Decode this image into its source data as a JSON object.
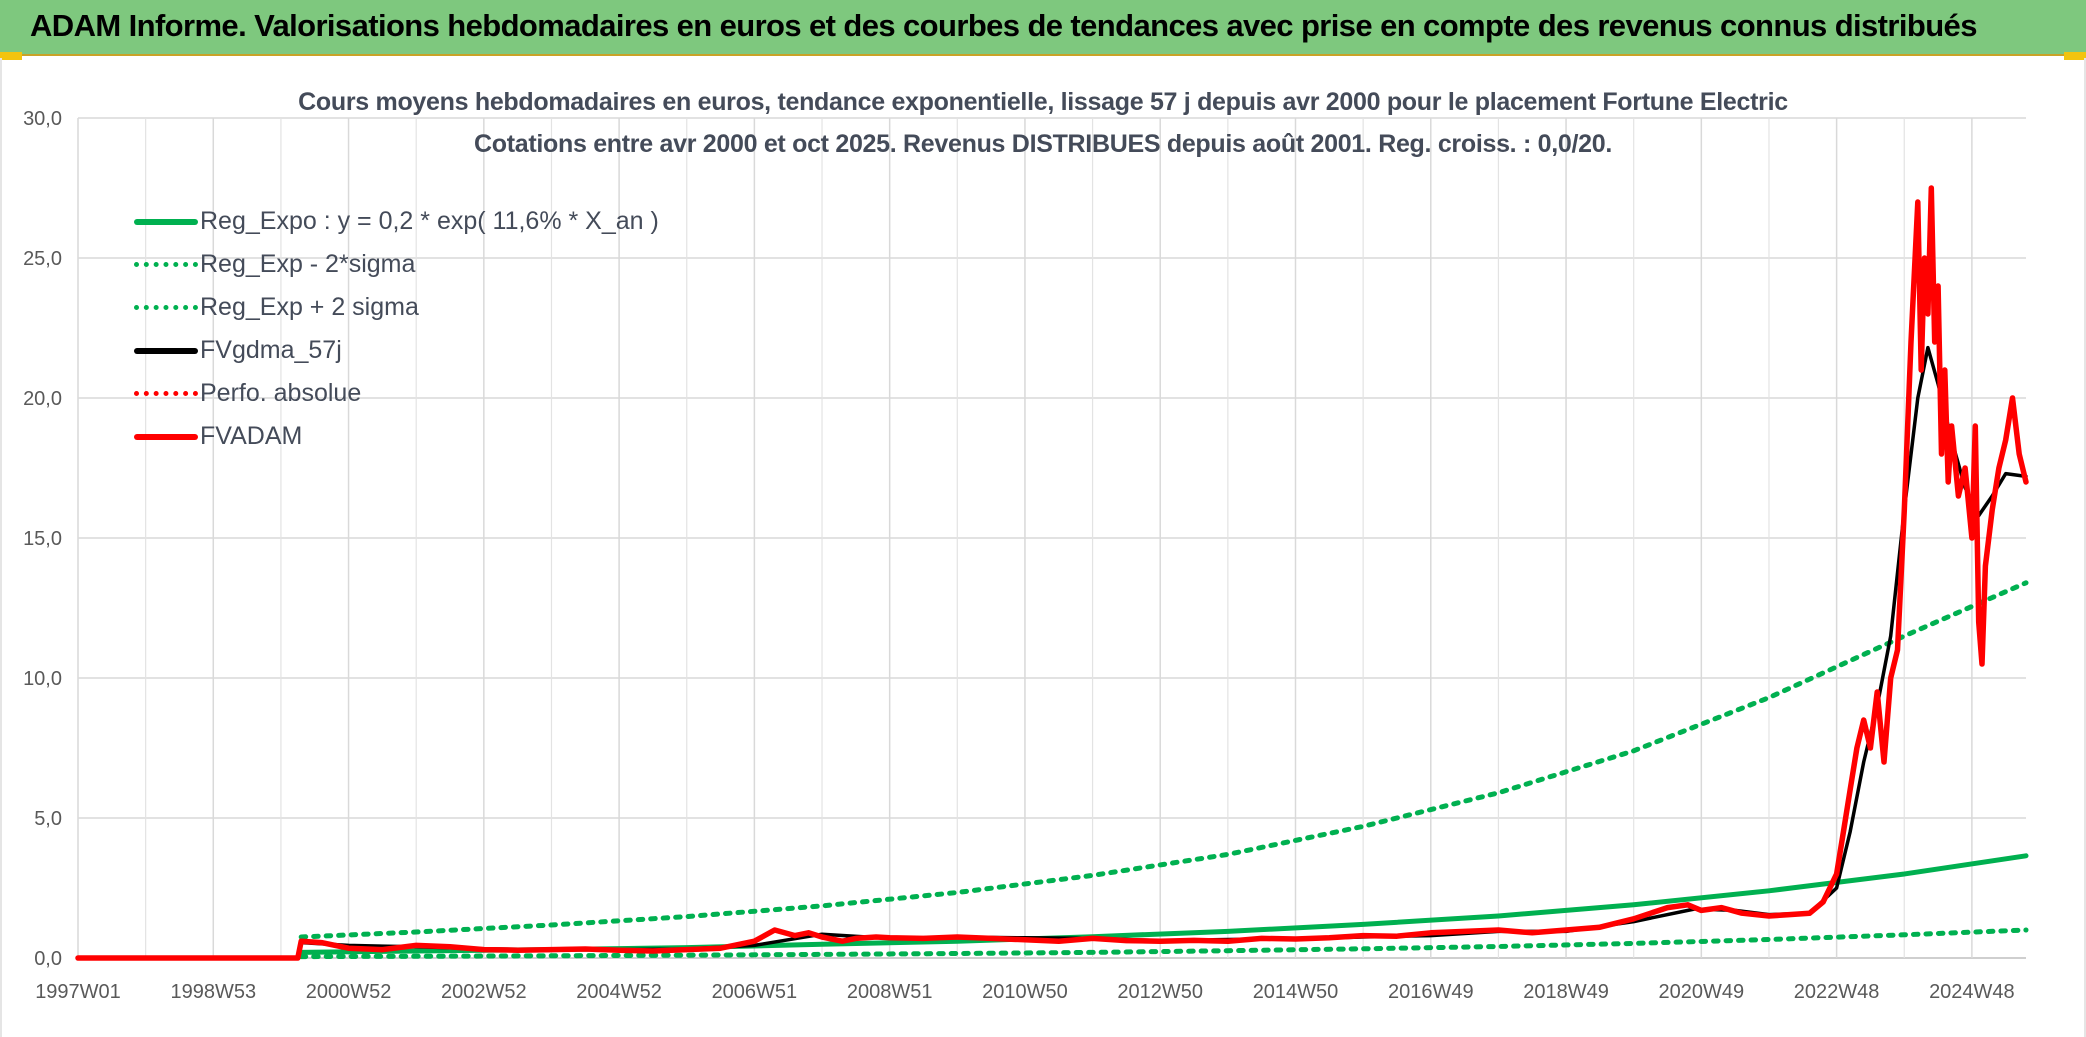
{
  "banner": {
    "title": "ADAM Informe. Valorisations hebdomadaires en euros et des courbes de tendances avec prise en compte des revenus connus distribués"
  },
  "chart_data": {
    "type": "line",
    "title": "Cours moyens hebdomadaires en euros, tendance exponentielle, lissage 57 j depuis avr 2000 pour le placement Fortune Electric",
    "subtitle": "Cotations entre avr 2000 et oct 2025. Revenus DISTRIBUES depuis août 2001. Reg. croiss. : 0,0/20.",
    "xlabel": "",
    "ylabel": "",
    "x_tick_labels": [
      "1997W01",
      "1998W53",
      "2000W52",
      "2002W52",
      "2004W52",
      "2006W51",
      "2008W51",
      "2010W50",
      "2012W50",
      "2014W50",
      "2016W49",
      "2018W49",
      "2020W49",
      "2022W48",
      "2024W48"
    ],
    "x_tick_years": [
      1997.0,
      1999.0,
      2001.0,
      2003.0,
      2005.0,
      2007.0,
      2009.0,
      2011.0,
      2013.0,
      2015.0,
      2017.0,
      2019.0,
      2021.0,
      2023.0,
      2025.0
    ],
    "x_range": [
      1997.0,
      2025.8
    ],
    "ylim": [
      0,
      30
    ],
    "y_ticks": [
      "0,0",
      "5,0",
      "10,0",
      "15,0",
      "20,0",
      "25,0",
      "30,0"
    ],
    "grid": true,
    "legend_position": "top-left",
    "series": [
      {
        "name": "Reg_Expo : y = 0,2 * exp( 11,6% *  X_an )",
        "color": "#00b050",
        "style": "solid",
        "x": [
          2000.3,
          2002,
          2004,
          2006,
          2008,
          2010,
          2012,
          2014,
          2016,
          2018,
          2020,
          2022,
          2024,
          2025.8
        ],
        "y": [
          0.2,
          0.25,
          0.3,
          0.37,
          0.49,
          0.6,
          0.76,
          0.95,
          1.2,
          1.5,
          1.9,
          2.4,
          3.0,
          3.65
        ]
      },
      {
        "name": "Reg_Exp - 2*sigma",
        "color": "#00b050",
        "style": "dotted",
        "x": [
          2000.3,
          2002,
          2004,
          2006,
          2008,
          2010,
          2012,
          2014,
          2016,
          2018,
          2020,
          2022,
          2024,
          2025.8
        ],
        "y": [
          0.05,
          0.06,
          0.08,
          0.1,
          0.13,
          0.16,
          0.2,
          0.26,
          0.33,
          0.41,
          0.52,
          0.66,
          0.83,
          1.0
        ]
      },
      {
        "name": "Reg_Exp + 2 sigma",
        "color": "#00b050",
        "style": "dotted",
        "x": [
          2000.3,
          2002,
          2004,
          2006,
          2008,
          2010,
          2012,
          2014,
          2016,
          2018,
          2020,
          2022,
          2024,
          2025.8
        ],
        "y": [
          0.75,
          0.93,
          1.18,
          1.48,
          1.86,
          2.34,
          2.95,
          3.7,
          4.7,
          5.9,
          7.4,
          9.3,
          11.5,
          13.4
        ]
      },
      {
        "name": "FVgdma_57j",
        "color": "#000000",
        "style": "solid",
        "x": [
          1997.0,
          2000.25,
          2000.3,
          2001,
          2002,
          2003,
          2004,
          2005,
          2006,
          2007,
          2008,
          2009,
          2010,
          2011,
          2012,
          2013,
          2014,
          2015,
          2016,
          2017,
          2018,
          2019,
          2020,
          2020.9,
          2021.5,
          2022,
          2022.6,
          2023.0,
          2023.2,
          2023.4,
          2023.6,
          2023.8,
          2024.0,
          2024.2,
          2024.35,
          2024.5,
          2024.7,
          2024.9,
          2025.1,
          2025.3,
          2025.5,
          2025.8
        ],
        "y": [
          0.0,
          0.0,
          0.55,
          0.45,
          0.4,
          0.33,
          0.3,
          0.3,
          0.32,
          0.45,
          0.85,
          0.7,
          0.75,
          0.72,
          0.7,
          0.62,
          0.66,
          0.68,
          0.75,
          0.8,
          0.95,
          0.95,
          1.3,
          1.75,
          1.7,
          1.55,
          1.6,
          2.5,
          4.5,
          7.0,
          9.0,
          11.5,
          16.0,
          20.0,
          21.8,
          20.5,
          18.5,
          16.8,
          15.8,
          16.5,
          17.3,
          17.2
        ]
      },
      {
        "name": "Perfo. absolue",
        "color": "#ff0000",
        "style": "dotted",
        "x": [
          1997.0,
          2000.25,
          2000.3,
          2001,
          2002,
          2003,
          2004,
          2005,
          2006,
          2007,
          2008,
          2009,
          2010,
          2011,
          2012,
          2013,
          2014,
          2015,
          2016,
          2017,
          2018,
          2019,
          2020,
          2020.9,
          2021.5,
          2022,
          2022.6,
          2023.0,
          2023.2,
          2023.4,
          2023.6,
          2023.8,
          2024.0,
          2024.2,
          2024.35,
          2024.5,
          2024.7,
          2024.9,
          2025.1,
          2025.3,
          2025.5,
          2025.8
        ],
        "y": [
          0.0,
          0.0,
          0.55,
          0.45,
          0.4,
          0.33,
          0.3,
          0.3,
          0.32,
          0.45,
          0.85,
          0.7,
          0.75,
          0.72,
          0.7,
          0.62,
          0.66,
          0.68,
          0.75,
          0.8,
          0.95,
          0.95,
          1.3,
          1.75,
          1.7,
          1.55,
          1.6,
          2.5,
          4.5,
          7.0,
          9.0,
          11.5,
          16.0,
          20.0,
          21.8,
          20.5,
          18.5,
          16.8,
          15.8,
          16.5,
          17.3,
          17.2
        ]
      },
      {
        "name": "FVADAM",
        "color": "#ff0000",
        "style": "solid",
        "x": [
          1997.0,
          2000.25,
          2000.3,
          2000.6,
          2001.0,
          2001.5,
          2002.0,
          2002.5,
          2003.0,
          2003.5,
          2004.0,
          2004.5,
          2005.0,
          2005.5,
          2006.0,
          2006.5,
          2007.0,
          2007.3,
          2007.6,
          2007.8,
          2008.0,
          2008.3,
          2008.5,
          2008.8,
          2009.0,
          2009.5,
          2010.0,
          2010.5,
          2011.0,
          2011.5,
          2012.0,
          2012.5,
          2013.0,
          2013.5,
          2014.0,
          2014.5,
          2015.0,
          2015.5,
          2016.0,
          2016.5,
          2017.0,
          2017.5,
          2018.0,
          2018.5,
          2019.0,
          2019.5,
          2020.0,
          2020.5,
          2020.8,
          2021.0,
          2021.3,
          2021.6,
          2022.0,
          2022.3,
          2022.6,
          2022.8,
          2023.0,
          2023.1,
          2023.2,
          2023.3,
          2023.4,
          2023.5,
          2023.6,
          2023.7,
          2023.8,
          2023.9,
          2024.0,
          2024.1,
          2024.2,
          2024.25,
          2024.3,
          2024.35,
          2024.4,
          2024.45,
          2024.5,
          2024.55,
          2024.6,
          2024.65,
          2024.7,
          2024.8,
          2024.9,
          2025.0,
          2025.05,
          2025.1,
          2025.15,
          2025.2,
          2025.3,
          2025.4,
          2025.5,
          2025.6,
          2025.7,
          2025.8
        ],
        "y": [
          0.0,
          0.0,
          0.6,
          0.55,
          0.35,
          0.3,
          0.45,
          0.4,
          0.3,
          0.28,
          0.3,
          0.32,
          0.28,
          0.25,
          0.3,
          0.35,
          0.6,
          1.0,
          0.8,
          0.9,
          0.75,
          0.6,
          0.7,
          0.75,
          0.72,
          0.7,
          0.75,
          0.7,
          0.65,
          0.6,
          0.7,
          0.62,
          0.6,
          0.63,
          0.6,
          0.7,
          0.68,
          0.72,
          0.8,
          0.78,
          0.9,
          0.95,
          1.0,
          0.9,
          1.0,
          1.1,
          1.4,
          1.8,
          1.9,
          1.7,
          1.8,
          1.6,
          1.5,
          1.55,
          1.6,
          2.0,
          3.0,
          4.5,
          6.0,
          7.5,
          8.5,
          7.5,
          9.5,
          7.0,
          10.0,
          11.0,
          16.0,
          22.0,
          27.0,
          21.0,
          25.0,
          23.0,
          27.5,
          22.0,
          24.0,
          18.0,
          21.0,
          17.0,
          19.0,
          16.5,
          17.5,
          15.0,
          19.0,
          12.0,
          10.5,
          14.0,
          16.0,
          17.5,
          18.5,
          20.0,
          18.0,
          17.0
        ]
      }
    ]
  }
}
